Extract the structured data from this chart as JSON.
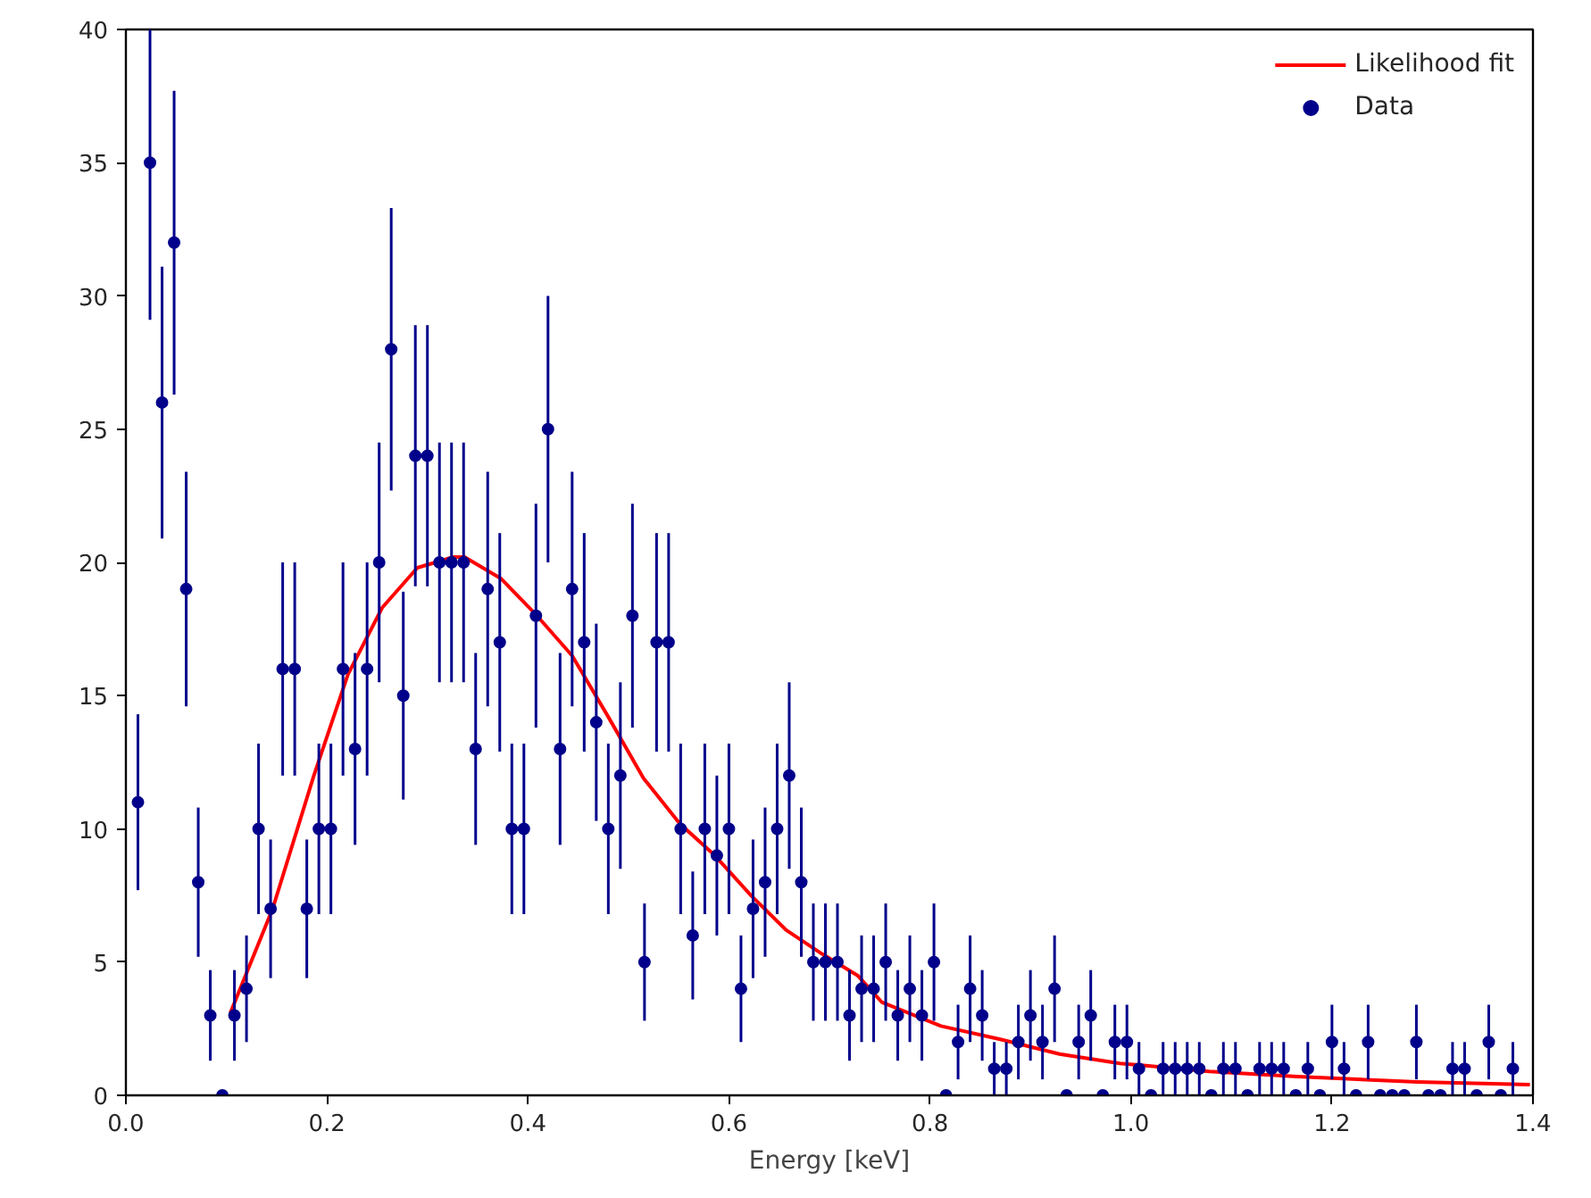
{
  "chart_data": {
    "type": "scatter",
    "xlabel": "Energy [keV]",
    "xlim": [
      0,
      1.4
    ],
    "ylim": [
      0,
      40
    ],
    "xticks": [
      {
        "value": 0,
        "label": "0.0"
      },
      {
        "value": 0.2,
        "label": "0.2"
      },
      {
        "value": 0.4,
        "label": "0.4"
      },
      {
        "value": 0.6,
        "label": "0.6"
      },
      {
        "value": 0.8,
        "label": "0.8"
      },
      {
        "value": 1.0,
        "label": "1.0"
      },
      {
        "value": 1.2,
        "label": "1.2"
      },
      {
        "value": 1.4,
        "label": "1.4"
      }
    ],
    "yticks": [
      0,
      5,
      10,
      15,
      20,
      25,
      30,
      35,
      40
    ],
    "grid": false,
    "legend": "top right",
    "series": [
      {
        "name": "Likelihood fit",
        "type": "line",
        "color": "#ff0000",
        "x": [
          0.104,
          0.146,
          0.187,
          0.221,
          0.255,
          0.29,
          0.326,
          0.337,
          0.373,
          0.409,
          0.444,
          0.48,
          0.515,
          0.551,
          0.586,
          0.622,
          0.657,
          0.693,
          0.728,
          0.752,
          0.811,
          0.87,
          0.929,
          0.989,
          1.078,
          1.166,
          1.285,
          1.397
        ],
        "values": [
          3.1,
          7.0,
          12.0,
          15.8,
          18.3,
          19.8,
          20.2,
          20.2,
          19.4,
          18.0,
          16.5,
          14.2,
          11.9,
          10.2,
          9.0,
          7.5,
          6.2,
          5.3,
          4.5,
          3.5,
          2.6,
          2.1,
          1.55,
          1.2,
          0.9,
          0.7,
          0.5,
          0.4
        ]
      },
      {
        "name": "Data",
        "marker": "circle",
        "color": "#00008b",
        "x": [
          0.012,
          0.024,
          0.036,
          0.048,
          0.06,
          0.072,
          0.084,
          0.096,
          0.108,
          0.12,
          0.132,
          0.144,
          0.156,
          0.168,
          0.18,
          0.192,
          0.204,
          0.216,
          0.228,
          0.24,
          0.252,
          0.264,
          0.276,
          0.288,
          0.3,
          0.312,
          0.324,
          0.336,
          0.348,
          0.36,
          0.372,
          0.384,
          0.396,
          0.408,
          0.42,
          0.432,
          0.444,
          0.456,
          0.468,
          0.48,
          0.492,
          0.504,
          0.516,
          0.528,
          0.54,
          0.552,
          0.564,
          0.576,
          0.588,
          0.6,
          0.612,
          0.624,
          0.636,
          0.648,
          0.66,
          0.672,
          0.684,
          0.696,
          0.708,
          0.72,
          0.732,
          0.744,
          0.756,
          0.768,
          0.78,
          0.792,
          0.804,
          0.816,
          0.828,
          0.84,
          0.852,
          0.864,
          0.876,
          0.888,
          0.9,
          0.912,
          0.924,
          0.936,
          0.948,
          0.96,
          0.972,
          0.984,
          0.996,
          1.008,
          1.02,
          1.032,
          1.044,
          1.056,
          1.068,
          1.08,
          1.092,
          1.104,
          1.116,
          1.128,
          1.14,
          1.152,
          1.164,
          1.176,
          1.188,
          1.2,
          1.212,
          1.224,
          1.236,
          1.248,
          1.26,
          1.272,
          1.284,
          1.296,
          1.308,
          1.32,
          1.332,
          1.344,
          1.356,
          1.368,
          1.38
        ],
        "values": [
          11,
          35,
          26,
          32,
          19,
          8,
          3,
          0,
          3,
          4,
          10,
          7,
          16,
          16,
          7,
          10,
          10,
          16,
          13,
          16,
          20,
          28,
          15,
          24,
          24,
          20,
          20,
          20,
          13,
          19,
          17,
          10,
          10,
          18,
          25,
          13,
          19,
          17,
          14,
          10,
          12,
          18,
          5,
          17,
          17,
          10,
          6,
          10,
          9,
          10,
          4,
          7,
          8,
          10,
          12,
          8,
          5,
          5,
          5,
          3,
          4,
          4,
          5,
          3,
          4,
          3,
          5,
          0,
          2,
          4,
          3,
          1,
          1,
          2,
          3,
          2,
          4,
          0,
          2,
          3,
          0,
          2,
          2,
          1,
          0,
          1,
          1,
          1,
          1,
          0,
          1,
          1,
          0,
          1,
          1,
          1,
          0,
          1,
          0,
          2,
          1,
          0,
          2,
          0,
          0,
          0,
          2,
          0,
          0,
          1,
          1,
          0,
          2,
          0,
          1
        ],
        "errors": [
          3.3,
          5.9,
          5.1,
          5.7,
          4.4,
          2.8,
          1.7,
          null,
          1.7,
          2,
          3.2,
          2.6,
          4,
          4,
          2.6,
          3.2,
          3.2,
          4,
          3.6,
          4,
          4.5,
          5.3,
          3.9,
          4.9,
          4.9,
          4.5,
          4.5,
          4.5,
          3.6,
          4.4,
          4.1,
          3.2,
          3.2,
          4.2,
          5,
          3.6,
          4.4,
          4.1,
          3.7,
          3.2,
          3.5,
          4.2,
          2.2,
          4.1,
          4.1,
          3.2,
          2.4,
          3.2,
          3,
          3.2,
          2,
          2.6,
          2.8,
          3.2,
          3.5,
          2.8,
          2.2,
          2.2,
          2.2,
          1.7,
          2,
          2,
          2.2,
          1.7,
          2,
          1.7,
          2.2,
          null,
          1.4,
          2,
          1.7,
          1,
          1,
          1.4,
          1.7,
          1.4,
          2,
          null,
          1.4,
          1.7,
          null,
          1.4,
          1.4,
          1,
          null,
          1,
          1,
          1,
          1,
          null,
          1,
          1,
          null,
          1,
          1,
          1,
          null,
          1,
          null,
          1.4,
          1,
          null,
          1.4,
          null,
          null,
          null,
          1.4,
          null,
          null,
          1,
          1,
          null,
          1.4,
          null,
          1
        ]
      }
    ]
  }
}
